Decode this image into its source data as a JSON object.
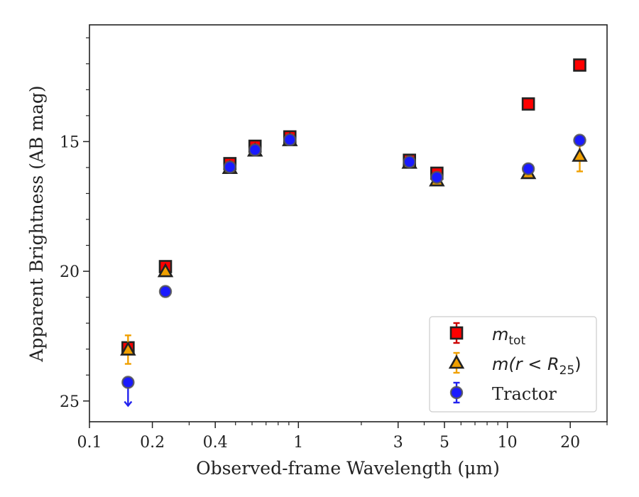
{
  "chart_data": {
    "type": "scatter",
    "title": "",
    "xlabel": "Observed-frame Wavelength (μm)",
    "ylabel": "Apparent Brightness (AB mag)",
    "xscale": "log",
    "xlim": [
      0.1,
      30
    ],
    "ylim": [
      25.8,
      10.5
    ],
    "y_inverted": true,
    "xticks": [
      {
        "value": 0.1,
        "label": "0.1"
      },
      {
        "value": 0.2,
        "label": "0.2"
      },
      {
        "value": 0.4,
        "label": "0.4"
      },
      {
        "value": 1,
        "label": "1"
      },
      {
        "value": 3,
        "label": "3"
      },
      {
        "value": 5,
        "label": "5"
      },
      {
        "value": 10,
        "label": "10"
      },
      {
        "value": 20,
        "label": "20"
      }
    ],
    "yticks": [
      {
        "value": 15,
        "label": "15"
      },
      {
        "value": 20,
        "label": "20"
      },
      {
        "value": 25,
        "label": "25"
      }
    ],
    "grid": false,
    "legend_position": "lower right",
    "series": [
      {
        "name": "m_tot",
        "marker": "square",
        "color": "#ff0000",
        "edge_color": "#222222",
        "errorbar_color": "#cc0000",
        "points": [
          {
            "x": 0.153,
            "y": 22.95,
            "yerr": 0.1
          },
          {
            "x": 0.231,
            "y": 19.82,
            "yerr": 0.05
          },
          {
            "x": 0.47,
            "y": 15.85,
            "yerr": 0.05
          },
          {
            "x": 0.62,
            "y": 15.18,
            "yerr": 0.05
          },
          {
            "x": 0.91,
            "y": 14.82,
            "yerr": 0.05
          },
          {
            "x": 3.4,
            "y": 15.72,
            "yerr": 0.05
          },
          {
            "x": 4.6,
            "y": 16.22,
            "yerr": 0.05
          },
          {
            "x": 12.6,
            "y": 13.55,
            "yerr": 0.03
          },
          {
            "x": 22.2,
            "y": 12.05,
            "yerr": 0.03
          }
        ]
      },
      {
        "name": "m(r < R25)",
        "marker": "triangle",
        "color": "#f0a000",
        "edge_color": "#222222",
        "errorbar_color": "#f0a000",
        "points": [
          {
            "x": 0.153,
            "y": 23.02,
            "yerr": 0.55
          },
          {
            "x": 0.231,
            "y": 20.0,
            "yerr": 0.1
          },
          {
            "x": 0.47,
            "y": 16.02,
            "yerr": 0.05
          },
          {
            "x": 0.62,
            "y": 15.35,
            "yerr": 0.05
          },
          {
            "x": 0.91,
            "y": 14.95,
            "yerr": 0.05
          },
          {
            "x": 3.4,
            "y": 15.82,
            "yerr": 0.05
          },
          {
            "x": 4.6,
            "y": 16.5,
            "yerr": 0.05
          },
          {
            "x": 12.6,
            "y": 16.22,
            "yerr": 0.1
          },
          {
            "x": 22.2,
            "y": 15.55,
            "yerr": 0.6
          }
        ]
      },
      {
        "name": "Tractor",
        "marker": "circle",
        "color": "#1a1aff",
        "edge_color": "#555555",
        "errorbar_color": "#2222ee",
        "points": [
          {
            "x": 0.153,
            "y": 24.28,
            "upper_limit": true
          },
          {
            "x": 0.231,
            "y": 20.78,
            "yerr": 0.05
          },
          {
            "x": 0.47,
            "y": 15.98,
            "yerr": 0.05
          },
          {
            "x": 0.62,
            "y": 15.32,
            "yerr": 0.05
          },
          {
            "x": 0.91,
            "y": 14.93,
            "yerr": 0.05
          },
          {
            "x": 3.4,
            "y": 15.78,
            "yerr": 0.05
          },
          {
            "x": 4.6,
            "y": 16.38,
            "yerr": 0.05
          },
          {
            "x": 12.6,
            "y": 16.05,
            "yerr": 0.05
          },
          {
            "x": 22.2,
            "y": 14.95,
            "yerr": 0.05
          }
        ]
      }
    ]
  },
  "legend": {
    "entries": [
      {
        "main": "m",
        "sub": "tot",
        "rest": ""
      },
      {
        "main": "m(r < R",
        "sub": "25",
        "rest": ")"
      },
      {
        "main": "Tractor",
        "sub": "",
        "rest": ""
      }
    ]
  }
}
